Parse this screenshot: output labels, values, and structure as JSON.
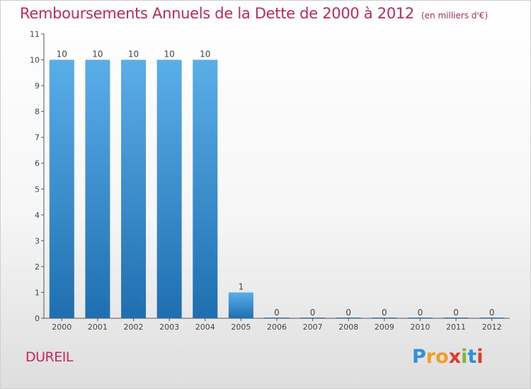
{
  "title": "Remboursements Annuels de la Dette de 2000 à 2012",
  "unit_note": "(en milliers d'€)",
  "commune": "DUREIL",
  "brand": {
    "letters": [
      "P",
      "r",
      "o",
      "x",
      "i",
      "t",
      "i"
    ],
    "colors": [
      "#2f8fd8",
      "#f0a020",
      "#f0a020",
      "#e03a2a",
      "#7ab833",
      "#2f8fd8",
      "#e03a2a"
    ]
  },
  "colors": {
    "bar_top": "#5aaee8",
    "bar_bottom": "#1f6fb0",
    "title": "#c8245e",
    "axis": "#555555",
    "label": "#444444"
  },
  "chart_data": {
    "type": "bar",
    "title": "Remboursements Annuels de la Dette de 2000 à 2012",
    "ylabel": "(en milliers d'€)",
    "xlabel": "",
    "categories": [
      "2000",
      "2001",
      "2002",
      "2003",
      "2004",
      "2005",
      "2006",
      "2007",
      "2008",
      "2009",
      "2010",
      "2011",
      "2012"
    ],
    "values": [
      10,
      10,
      10,
      10,
      10,
      1,
      0,
      0,
      0,
      0,
      0,
      0,
      0
    ],
    "ylim": [
      0,
      11
    ],
    "yticks": [
      0,
      1,
      2,
      3,
      4,
      5,
      6,
      7,
      8,
      9,
      10,
      11
    ],
    "grid": false,
    "legend": "none"
  }
}
